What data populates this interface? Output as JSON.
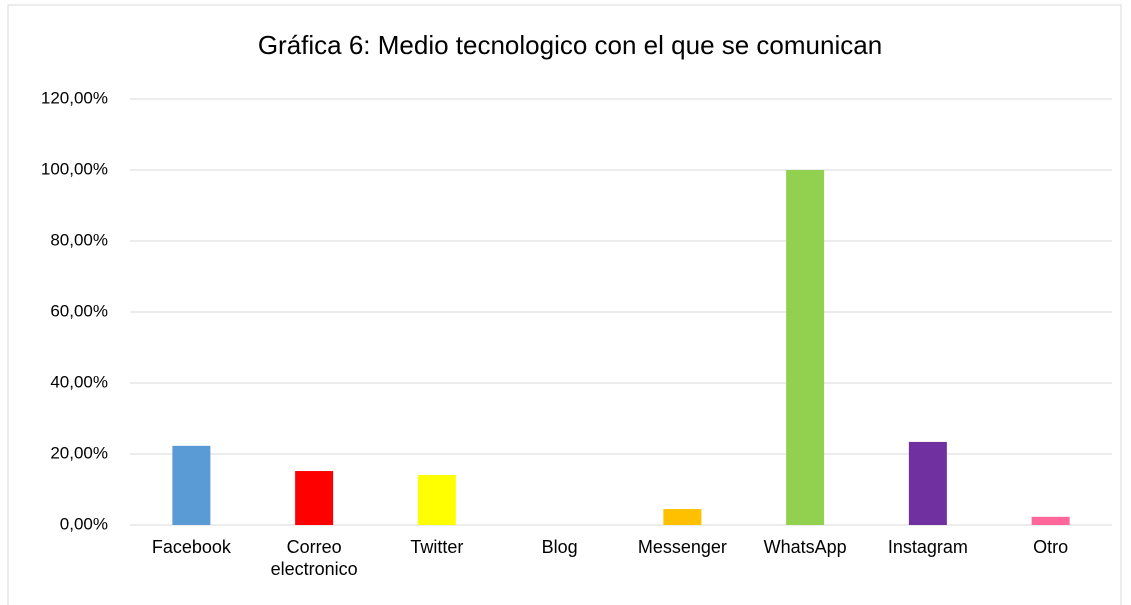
{
  "chart_data": {
    "type": "bar",
    "title": "Gráfica 6: Medio tecnologico con el que se comunican",
    "categories": [
      "Facebook",
      "Correo electronico",
      "Twitter",
      "Blog",
      "Messenger",
      "WhatsApp",
      "Instagram",
      "Otro"
    ],
    "values": [
      22.3,
      15.2,
      14.1,
      0,
      4.5,
      100,
      23.4,
      2.3
    ],
    "colors": [
      "#5b9bd5",
      "#ff0000",
      "#ffff00",
      "#00b0f0",
      "#ffc000",
      "#92d050",
      "#7030a0",
      "#ff6699"
    ],
    "ylim": [
      0,
      120
    ],
    "yticks": [
      {
        "value": 0,
        "label": "0,00%"
      },
      {
        "value": 20,
        "label": "20,00%"
      },
      {
        "value": 40,
        "label": "40,00%"
      },
      {
        "value": 60,
        "label": "60,00%"
      },
      {
        "value": 80,
        "label": "80,00%"
      },
      {
        "value": 100,
        "label": "100,00%"
      },
      {
        "value": 120,
        "label": "120,00%"
      }
    ],
    "grid": true
  }
}
